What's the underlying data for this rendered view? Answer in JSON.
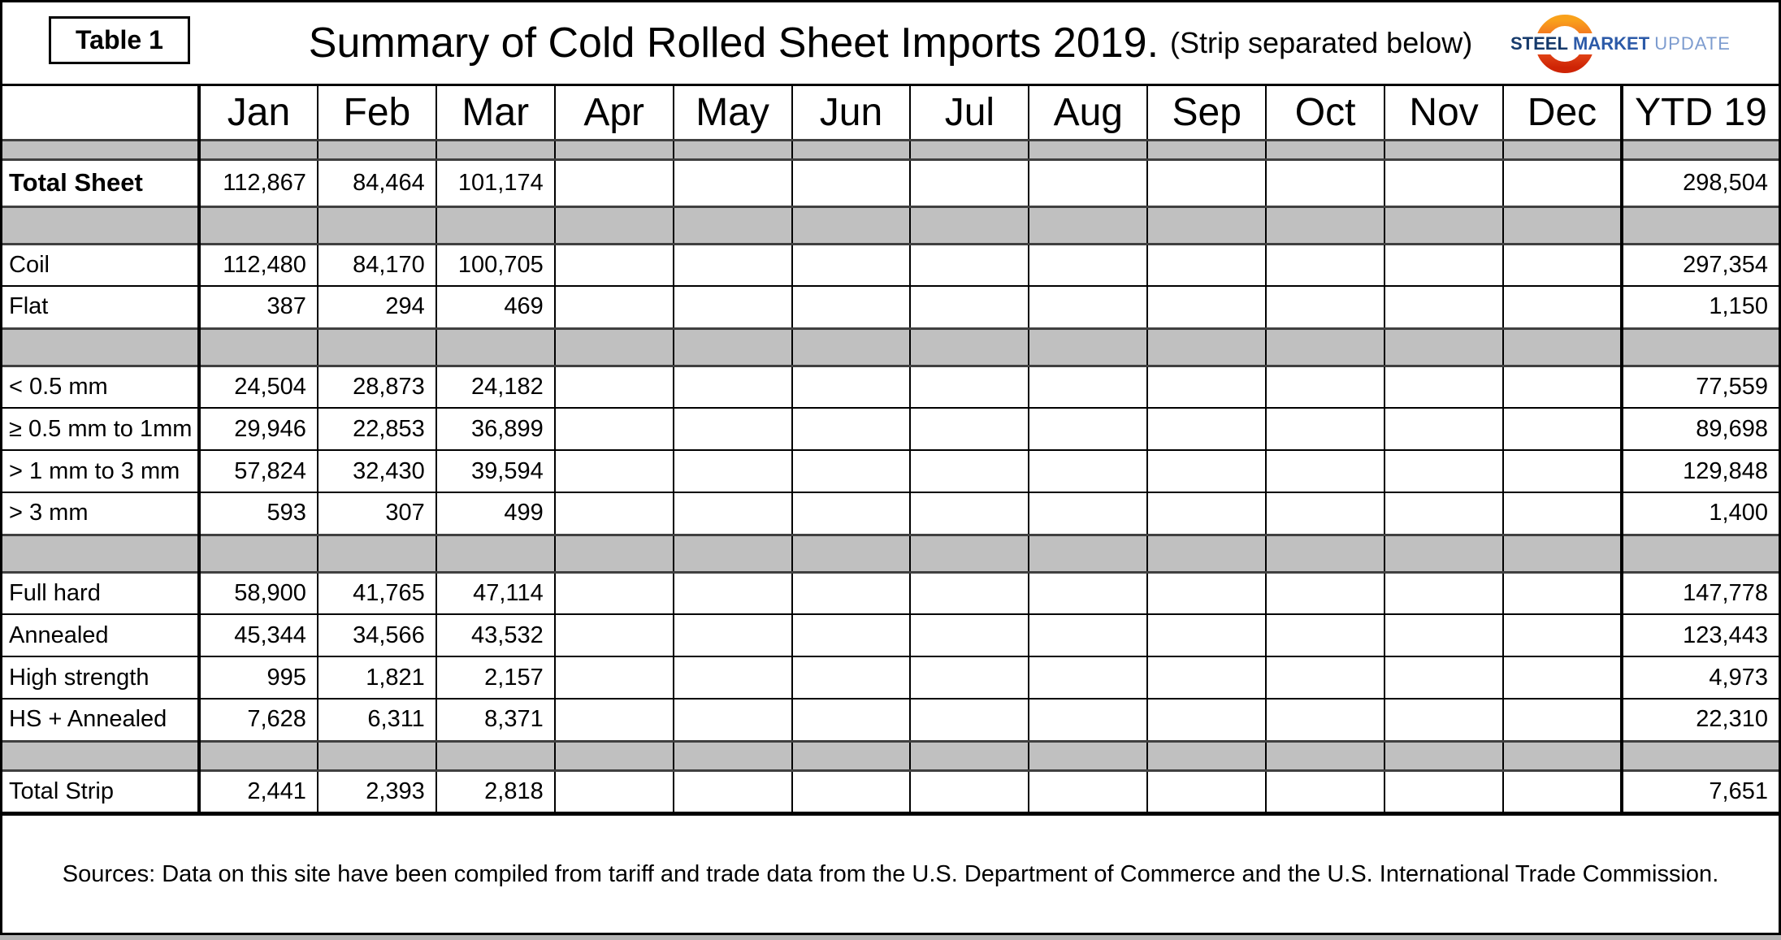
{
  "header": {
    "table_label": "Table 1",
    "title": "Summary of Cold Rolled Sheet Imports 2019.",
    "subtitle": "(Strip separated below)",
    "logo": {
      "word1": "STEEL",
      "word2": "MARKET",
      "word3": "UPDATE"
    }
  },
  "chart_data": {
    "type": "table",
    "title": "Summary of Cold Rolled Sheet Imports 2019. (Strip separated below)",
    "months": [
      "Jan",
      "Feb",
      "Mar",
      "Apr",
      "May",
      "Jun",
      "Jul",
      "Aug",
      "Sep",
      "Oct",
      "Nov",
      "Dec"
    ],
    "ytd_label": "YTD 19",
    "rows": [
      {
        "kind": "spacer-thin"
      },
      {
        "kind": "total",
        "label": "Total Sheet",
        "values": [
          "112,867",
          "84,464",
          "101,174",
          "",
          "",
          "",
          "",
          "",
          "",
          "",
          "",
          ""
        ],
        "ytd": "298,504"
      },
      {
        "kind": "spacer"
      },
      {
        "kind": "item",
        "label": "Coil",
        "values": [
          "112,480",
          "84,170",
          "100,705",
          "",
          "",
          "",
          "",
          "",
          "",
          "",
          "",
          ""
        ],
        "ytd": "297,354"
      },
      {
        "kind": "item",
        "label": "Flat",
        "values": [
          "387",
          "294",
          "469",
          "",
          "",
          "",
          "",
          "",
          "",
          "",
          "",
          ""
        ],
        "ytd": "1,150"
      },
      {
        "kind": "spacer"
      },
      {
        "kind": "item",
        "label": "< 0.5 mm",
        "values": [
          "24,504",
          "28,873",
          "24,182",
          "",
          "",
          "",
          "",
          "",
          "",
          "",
          "",
          ""
        ],
        "ytd": "77,559"
      },
      {
        "kind": "item",
        "label": "≥ 0.5 mm to 1mm",
        "values": [
          "29,946",
          "22,853",
          "36,899",
          "",
          "",
          "",
          "",
          "",
          "",
          "",
          "",
          ""
        ],
        "ytd": "89,698"
      },
      {
        "kind": "item",
        "label": "> 1 mm to 3 mm",
        "values": [
          "57,824",
          "32,430",
          "39,594",
          "",
          "",
          "",
          "",
          "",
          "",
          "",
          "",
          ""
        ],
        "ytd": "129,848"
      },
      {
        "kind": "item",
        "label": "> 3 mm",
        "values": [
          "593",
          "307",
          "499",
          "",
          "",
          "",
          "",
          "",
          "",
          "",
          "",
          ""
        ],
        "ytd": "1,400"
      },
      {
        "kind": "spacer"
      },
      {
        "kind": "item",
        "label": "Full hard",
        "values": [
          "58,900",
          "41,765",
          "47,114",
          "",
          "",
          "",
          "",
          "",
          "",
          "",
          "",
          ""
        ],
        "ytd": "147,778"
      },
      {
        "kind": "item",
        "label": "Annealed",
        "values": [
          "45,344",
          "34,566",
          "43,532",
          "",
          "",
          "",
          "",
          "",
          "",
          "",
          "",
          ""
        ],
        "ytd": "123,443"
      },
      {
        "kind": "item",
        "label": "High strength",
        "values": [
          "995",
          "1,821",
          "2,157",
          "",
          "",
          "",
          "",
          "",
          "",
          "",
          "",
          ""
        ],
        "ytd": "4,973"
      },
      {
        "kind": "item",
        "label": "HS + Annealed",
        "values": [
          "7,628",
          "6,311",
          "8,371",
          "",
          "",
          "",
          "",
          "",
          "",
          "",
          "",
          ""
        ],
        "ytd": "22,310"
      },
      {
        "kind": "spacer-small"
      },
      {
        "kind": "item",
        "label": "Total Strip",
        "values": [
          "2,441",
          "2,393",
          "2,818",
          "",
          "",
          "",
          "",
          "",
          "",
          "",
          "",
          ""
        ],
        "ytd": "7,651"
      }
    ]
  },
  "footer": {
    "sources": "Sources: Data on this site have been compiled from tariff and trade data from the U.S. Department of Commerce and the U.S. International Trade Commission."
  },
  "colors": {
    "spacer_gray": "#C0C0C0",
    "logo_navy": "#163A6B",
    "logo_blue": "#2C5AA8",
    "logo_light_blue": "#7D9CCF",
    "logo_orange_top": "#F9A11B",
    "logo_orange_bottom": "#CE2405"
  }
}
